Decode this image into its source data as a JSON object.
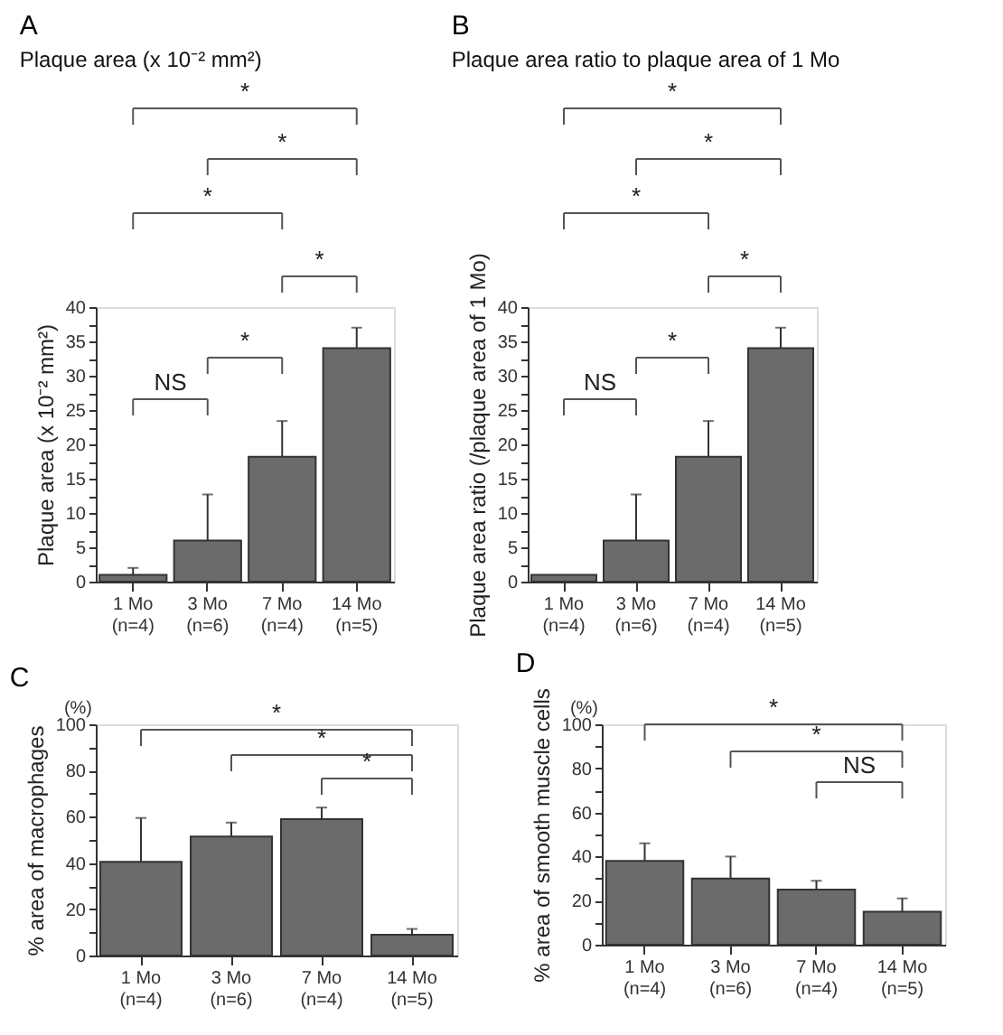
{
  "chart_data": [
    {
      "type": "bar",
      "title": "A",
      "subtitle": "Plaque area (x 10⁻² mm²)",
      "ylabel": "Plaque area (x 10⁻² mm²)",
      "categories": [
        "1 Mo\n(n=4)",
        "3 Mo\n(n=6)",
        "7 Mo\n(n=4)",
        "14 Mo\n(n=5)"
      ],
      "values": [
        1,
        6,
        18.2,
        34
      ],
      "errors": [
        [
          1,
          2
        ],
        [
          6,
          12.7
        ],
        [
          18.2,
          23.4
        ],
        [
          34,
          37
        ]
      ],
      "color": "#6b6b6b",
      "ylim": [
        0,
        40
      ],
      "yticks": [
        0,
        {
          "value": 2.5,
          "label": null
        },
        5,
        {
          "value": 7.5,
          "label": null
        },
        10,
        {
          "value": 12.5,
          "label": null
        },
        15,
        {
          "value": 17.5,
          "label": null
        },
        20,
        {
          "value": 22.5,
          "label": null
        },
        25,
        {
          "value": 27.5,
          "label": null
        },
        30,
        {
          "value": 32.5,
          "label": null
        },
        35,
        {
          "value": 37.5,
          "label": null
        },
        40
      ],
      "grid": false,
      "annotations": [
        "*",
        "*",
        "*",
        "*",
        "*",
        "NS"
      ]
    },
    {
      "type": "bar",
      "title": "B",
      "subtitle": "Plaque area ratio to plaque area of 1 Mo",
      "ylabel": "Plaque area ratio (/plaque area of 1 Mo)",
      "categories": [
        "1 Mo\n(n=4)",
        "3 Mo\n(n=6)",
        "7 Mo\n(n=4)",
        "14 Mo\n(n=5)"
      ],
      "values": [
        1,
        6,
        18.2,
        34
      ],
      "errors": [
        null,
        [
          6,
          12.7
        ],
        [
          18.2,
          23.4
        ],
        [
          34,
          37
        ]
      ],
      "color": "#6b6b6b",
      "ylim": [
        0,
        40
      ],
      "yticks": [
        0,
        {
          "value": 2.5,
          "label": null
        },
        5,
        {
          "value": 7.5,
          "label": null
        },
        10,
        {
          "value": 12.5,
          "label": null
        },
        15,
        {
          "value": 17.5,
          "label": null
        },
        20,
        {
          "value": 22.5,
          "label": null
        },
        25,
        {
          "value": 27.5,
          "label": null
        },
        30,
        {
          "value": 32.5,
          "label": null
        },
        35,
        {
          "value": 37.5,
          "label": null
        },
        40
      ],
      "grid": false,
      "annotations": [
        "*",
        "*",
        "*",
        "*",
        "*",
        "NS"
      ]
    },
    {
      "type": "bar",
      "title": "C",
      "ylabel": "% area of  macrophages",
      "categories": [
        "1 Mo\n(n=4)",
        "3 Mo\n(n=6)",
        "7 Mo\n(n=4)",
        "14 Mo\n(n=5)"
      ],
      "values": [
        40.5,
        51.5,
        59,
        9
      ],
      "errors": [
        [
          40.5,
          59.5
        ],
        [
          51.5,
          57.5
        ],
        [
          59,
          64
        ],
        [
          9,
          11.5
        ]
      ],
      "color": "#6b6b6b",
      "ylim": [
        0,
        100
      ],
      "yticks": [
        0,
        {
          "value": 10,
          "label": null
        },
        20,
        {
          "value": 30,
          "label": null
        },
        40,
        {
          "value": 50,
          "label": null
        },
        60,
        {
          "value": 70,
          "label": null
        },
        80,
        {
          "value": 90,
          "label": null
        },
        100
      ],
      "grid": false,
      "annotations": [
        "*",
        "*",
        "*",
        "(%)"
      ]
    },
    {
      "type": "bar",
      "title": "D",
      "ylabel": "% area of  smooth muscle cells",
      "categories": [
        "1 Mo\n(n=4)",
        "3 Mo\n(n=6)",
        "7 Mo\n(n=4)",
        "14 Mo\n(n=5)"
      ],
      "values": [
        38,
        30,
        25,
        15
      ],
      "errors": [
        [
          38,
          46
        ],
        [
          30,
          40
        ],
        [
          25,
          29
        ],
        [
          15,
          21
        ]
      ],
      "color": "#6b6b6b",
      "ylim": [
        0,
        100
      ],
      "yticks": [
        0,
        {
          "value": 10,
          "label": null
        },
        20,
        {
          "value": 30,
          "label": null
        },
        40,
        {
          "value": 50,
          "label": null
        },
        60,
        {
          "value": 70,
          "label": null
        },
        80,
        {
          "value": 90,
          "label": null
        },
        100
      ],
      "grid": false,
      "annotations": [
        "*",
        "*",
        "NS",
        "(%)"
      ]
    }
  ]
}
